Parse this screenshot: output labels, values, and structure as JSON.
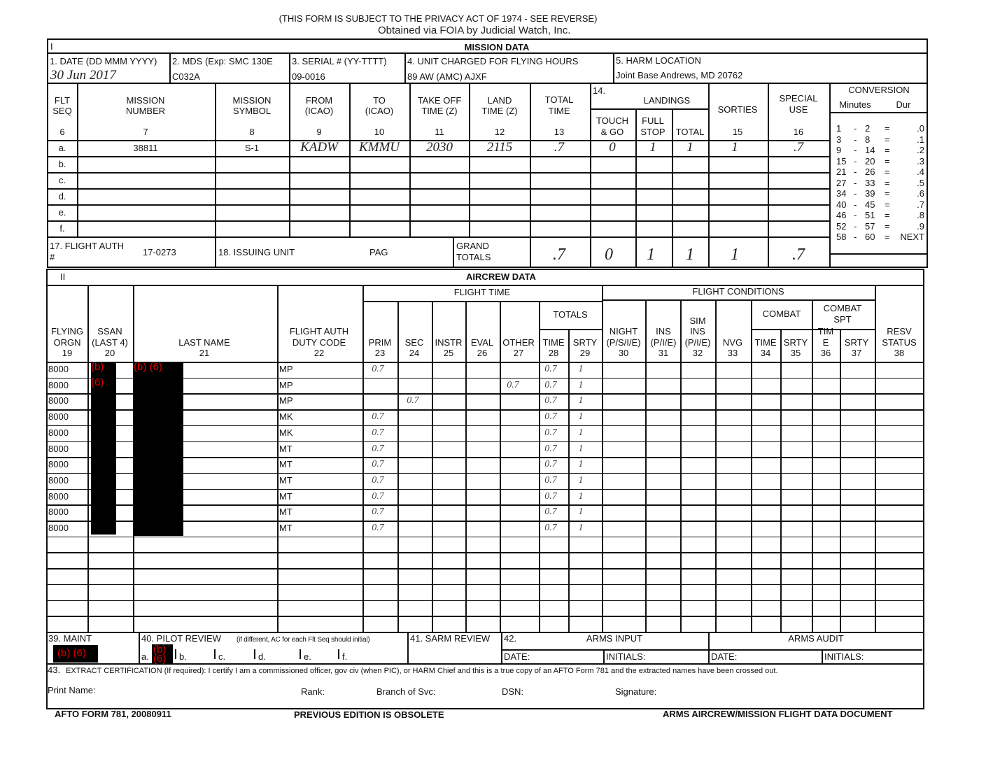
{
  "privacy_notice": "(THIS FORM IS SUBJECT TO THE PRIVACY ACT OF 1974 - SEE REVERSE)",
  "watermark": "Obtained via FOIA by Judicial Watch, Inc.",
  "redaction_label": "(b) (6)",
  "redaction_b": "(b)",
  "redaction_6": "(6)",
  "section1": {
    "roman": "I",
    "title": "MISSION DATA",
    "date_label": "1. DATE (DD MMM YYYY)",
    "date_value": "30 Jun 2017",
    "mds_label": "2. MDS (Exp:  SMC 130E",
    "mds_value": "C032A",
    "serial_label": "3.  SERIAL # (YY-TTTT)",
    "serial_value": "09-0016",
    "unit_label": "4.  UNIT CHARGED FOR FLYING HOURS",
    "unit_value": "89 AW (AMC) AJXF",
    "harm_label": "5.  HARM LOCATION",
    "harm_value": "Joint Base Andrews, MD 20762",
    "headers": [
      {
        "l1": "FLT",
        "l2": "SEQ",
        "num": "6"
      },
      {
        "l1": "MISSION",
        "l2": "NUMBER",
        "num": "7"
      },
      {
        "l1": "MISSION",
        "l2": "SYMBOL",
        "num": "8"
      },
      {
        "l1": "FROM",
        "l2": "(ICAO)",
        "num": "9"
      },
      {
        "l1": "TO",
        "l2": "(ICAO)",
        "num": "10"
      },
      {
        "l1": "TAKE OFF",
        "l2": "TIME (Z)",
        "num": "11"
      },
      {
        "l1": "LAND",
        "l2": "TIME (Z)",
        "num": "12"
      },
      {
        "l1": "TOTAL",
        "l2": "TIME",
        "num": "13"
      }
    ],
    "landings": {
      "num": "14.",
      "title": "LANDINGS",
      "touch_l1": "TOUCH",
      "touch_l2": "& GO",
      "full_l1": "FULL",
      "full_l2": "STOP",
      "total": "TOTAL"
    },
    "sorties": {
      "label": "SORTIES",
      "num": "15"
    },
    "special_use": {
      "l1": "SPECIAL",
      "l2": "USE",
      "num": "16"
    },
    "mission_rows": [
      {
        "seq": "a.",
        "mission_number": "38811",
        "symbol": "S-1",
        "from": "KADW",
        "to": "KMMU",
        "takeoff": "2030",
        "land": "2115",
        "total_time": ".7",
        "touch_go": "0",
        "full_stop": "1",
        "total": "1",
        "sorties": "1",
        "special_use": ".7"
      },
      {
        "seq": "b."
      },
      {
        "seq": "c."
      },
      {
        "seq": "d."
      },
      {
        "seq": "e."
      },
      {
        "seq": "f."
      }
    ],
    "flight_auth_label": "17.  FLIGHT AUTH",
    "flight_auth_hash": "#",
    "flight_auth_value": "17-0273",
    "issuing_unit_label": "18. ISSUING UNIT",
    "issuing_unit_value": "PAG",
    "grand_totals_l1": "GRAND",
    "grand_totals_l2": "TOTALS",
    "grand_totals": [
      ".7",
      "0",
      "1",
      "1",
      "1",
      ".7"
    ],
    "conversion": {
      "title": "CONVERSION",
      "minutes_label": "Minutes",
      "dur_label": "Dur",
      "rows": [
        [
          "1",
          "2",
          ".0"
        ],
        [
          "3",
          "8",
          ".1"
        ],
        [
          "9",
          "14",
          ".2"
        ],
        [
          "15",
          "20",
          ".3"
        ],
        [
          "21",
          "26",
          ".4"
        ],
        [
          "27",
          "33",
          ".5"
        ],
        [
          "34",
          "39",
          ".6"
        ],
        [
          "40",
          "45",
          ".7"
        ],
        [
          "46",
          "51",
          ".8"
        ],
        [
          "52",
          "57",
          ".9"
        ],
        [
          "58",
          "60",
          "NEXT"
        ]
      ]
    }
  },
  "section2": {
    "roman": "II",
    "title": "AIRCREW DATA",
    "flight_time": "FLIGHT TIME",
    "flight_conditions": "FLIGHT CONDITIONS",
    "totals": "TOTALS",
    "combat": "COMBAT",
    "combat_spt_l1": "COMBAT",
    "combat_spt_l2": "SPT",
    "headers": [
      [
        "FLYING",
        "ORGN",
        "19"
      ],
      [
        "SSAN",
        "(LAST 4)",
        "20"
      ],
      [
        "LAST NAME",
        "21"
      ],
      [
        "FLIGHT AUTH",
        "DUTY CODE",
        "22"
      ],
      [
        "PRIM",
        "23"
      ],
      [
        "SEC",
        "24"
      ],
      [
        "INSTR",
        "25"
      ],
      [
        "EVAL",
        "26"
      ],
      [
        "OTHER",
        "27"
      ],
      [
        "TIME",
        "28"
      ],
      [
        "SRTY",
        "29"
      ],
      [
        "NIGHT",
        "(P/S/I/E)",
        "30"
      ],
      [
        "INS",
        "(P/I/E)",
        "31"
      ],
      [
        "SIM",
        "INS",
        "(P/I/E)",
        "32"
      ],
      [
        "NVG",
        "33"
      ],
      [
        "TIME",
        "34"
      ],
      [
        "SRTY",
        "35"
      ],
      [
        "TIM",
        "E",
        "36"
      ],
      [
        "SRTY",
        "37"
      ],
      [
        "RESV",
        "STATUS",
        "38"
      ]
    ],
    "rows": [
      {
        "orgn": "8000",
        "duty": "MP",
        "prim": "0.7",
        "sec": "",
        "other": "",
        "time": "0.7",
        "srty": "1"
      },
      {
        "orgn": "8000",
        "duty": "MP",
        "prim": "",
        "sec": "",
        "other": "0.7",
        "time": "0.7",
        "srty": "1"
      },
      {
        "orgn": "8000",
        "duty": "MP",
        "prim": "",
        "sec": "0.7",
        "other": "",
        "time": "0.7",
        "srty": "1"
      },
      {
        "orgn": "8000",
        "duty": "MK",
        "prim": "0.7",
        "sec": "",
        "other": "",
        "time": "0.7",
        "srty": "1"
      },
      {
        "orgn": "8000",
        "duty": "MK",
        "prim": "0.7",
        "sec": "",
        "other": "",
        "time": "0.7",
        "srty": "1"
      },
      {
        "orgn": "8000",
        "duty": "MT",
        "prim": "0.7",
        "sec": "",
        "other": "",
        "time": "0.7",
        "srty": "1"
      },
      {
        "orgn": "8000",
        "duty": "MT",
        "prim": "0.7",
        "sec": "",
        "other": "",
        "time": "0.7",
        "srty": "1"
      },
      {
        "orgn": "8000",
        "duty": "MT",
        "prim": "0.7",
        "sec": "",
        "other": "",
        "time": "0.7",
        "srty": "1"
      },
      {
        "orgn": "8000",
        "duty": "MT",
        "prim": "0.7",
        "sec": "",
        "other": "",
        "time": "0.7",
        "srty": "1"
      },
      {
        "orgn": "8000",
        "duty": "MT",
        "prim": "0.7",
        "sec": "",
        "other": "",
        "time": "0.7",
        "srty": "1"
      },
      {
        "orgn": "8000",
        "duty": "MT",
        "prim": "0.7",
        "sec": "",
        "other": "",
        "time": "0.7",
        "srty": "1"
      }
    ],
    "maint_label": "39. MAINT",
    "pilot_review_label": "40.  PILOT REVIEW",
    "pilot_review_note": "(if different, AC for each Flt Seq should initial)",
    "pilot_review_slots": [
      "a.",
      "b.",
      "c.",
      "d.",
      "e.",
      "f."
    ],
    "sarm_review_label": "41.  SARM REVIEW",
    "item42": "42.",
    "arms_input": "ARMS INPUT",
    "arms_audit": "ARMS AUDIT",
    "date_label": "DATE:",
    "initials_label": "INITIALS:",
    "cert_num": "43.",
    "cert_text": "EXTRACT CERTIFICATION (If required):  I certify I am a commissioned officer, gov civ (when PIC), or HARM Chief and this is a true copy of an AFTO Form 781 and the extracted names have been crossed out.",
    "print_name": "Print Name:",
    "rank": "Rank:",
    "branch": "Branch of Svc:",
    "dsn": "DSN:",
    "signature": "Signature:"
  },
  "footer": {
    "form_id": "AFTO FORM 781, 20080911",
    "obsolete": "PREVIOUS EDITION IS OBSOLETE",
    "doc_title": "ARMS AIRCREW/MISSION FLIGHT DATA DOCUMENT"
  }
}
